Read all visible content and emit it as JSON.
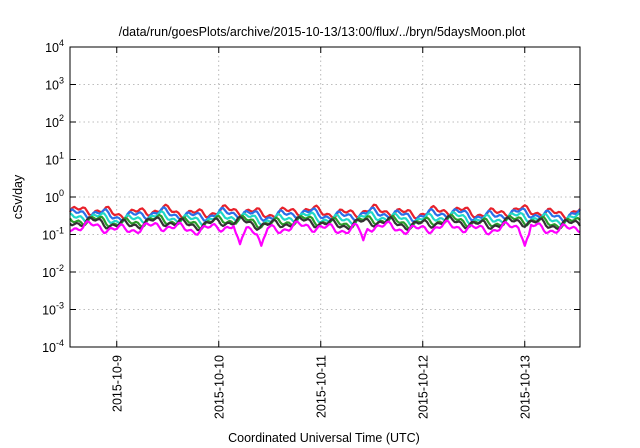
{
  "chart_data": {
    "type": "line",
    "title": "/data/run/goesPlots/archive/2015-10-13/13:00/flux/../bryn/5daysMoon.plot",
    "xlabel": "Coordinated Universal Time (UTC)",
    "ylabel": "cSv/day",
    "y_scale": "log",
    "ylim": [
      0.0001,
      10000
    ],
    "xlim": [
      "2015-10-08 13:00",
      "2015-10-13 13:00"
    ],
    "grid": true,
    "y_ticks": [
      {
        "base": "10",
        "exp": "-4",
        "value": 0.0001
      },
      {
        "base": "10",
        "exp": "-3",
        "value": 0.001
      },
      {
        "base": "10",
        "exp": "-2",
        "value": 0.01
      },
      {
        "base": "10",
        "exp": "-1",
        "value": 0.1
      },
      {
        "base": "10",
        "exp": "0",
        "value": 1
      },
      {
        "base": "10",
        "exp": "1",
        "value": 10
      },
      {
        "base": "10",
        "exp": "2",
        "value": 100
      },
      {
        "base": "10",
        "exp": "3",
        "value": 1000
      },
      {
        "base": "10",
        "exp": "4",
        "value": 10000
      }
    ],
    "x_ticks": [
      "2015-10-9",
      "2015-10-10",
      "2015-10-11",
      "2015-10-12",
      "2015-10-13"
    ],
    "x_tick_values": [
      "2015-10-09 00:00",
      "2015-10-10 00:00",
      "2015-10-11 00:00",
      "2015-10-12 00:00",
      "2015-10-13 00:00"
    ],
    "series": [
      {
        "color": "#e8202a",
        "level": 0.4,
        "dips": []
      },
      {
        "color": "#2a6fe8",
        "level": 0.34,
        "dips": []
      },
      {
        "color": "#20d8c8",
        "level": 0.27,
        "dips": []
      },
      {
        "color": "#2a9a2a",
        "level": 0.22,
        "dips": []
      },
      {
        "color": "#333333",
        "level": 0.2,
        "dips": []
      },
      {
        "color": "#ff00ff",
        "level": 0.15,
        "dips": [
          [
            "2015-10-10 05:00",
            0.055
          ],
          [
            "2015-10-10 10:00",
            0.05
          ],
          [
            "2015-10-11 10:00",
            0.07
          ],
          [
            "2015-10-13 00:00",
            0.05
          ]
        ]
      }
    ]
  }
}
